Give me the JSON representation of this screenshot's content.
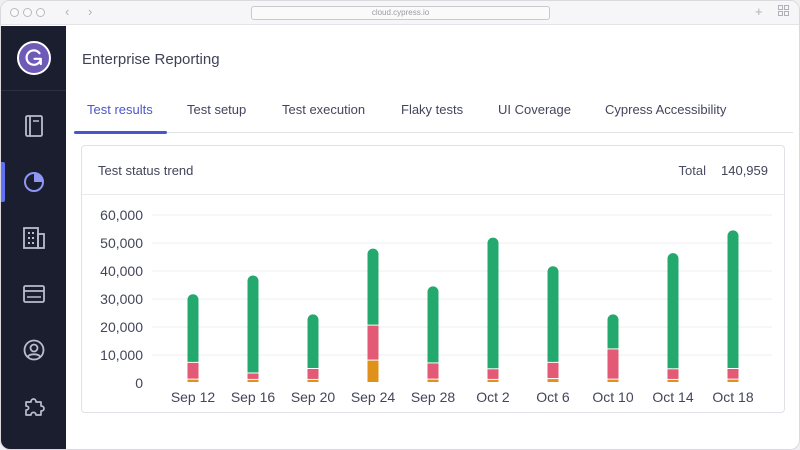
{
  "browser": {
    "url": "cloud.cypress.io"
  },
  "page": {
    "title": "Enterprise Reporting"
  },
  "tabs": [
    {
      "label": "Test results",
      "active": true
    },
    {
      "label": "Test setup",
      "active": false
    },
    {
      "label": "Test execution",
      "active": false
    },
    {
      "label": "Flaky tests",
      "active": false
    },
    {
      "label": "UI Coverage",
      "active": false
    },
    {
      "label": "Cypress Accessibility",
      "active": false
    }
  ],
  "sidebar": {
    "items": [
      {
        "icon": "book-icon",
        "active": false
      },
      {
        "icon": "pie-chart-icon",
        "active": true
      },
      {
        "icon": "building-icon",
        "active": false
      },
      {
        "icon": "card-icon",
        "active": false
      },
      {
        "icon": "user-circle-icon",
        "active": false
      },
      {
        "icon": "puzzle-icon",
        "active": false
      }
    ]
  },
  "card": {
    "title": "Test status trend",
    "total_label": "Total",
    "total_value": "140,959"
  },
  "colors": {
    "passed": "#23a86d",
    "failed": "#e35a76",
    "other": "#e0911a",
    "accent": "#4a55c9"
  },
  "chart_data": {
    "type": "bar",
    "stacked": true,
    "categories": [
      "Sep 12",
      "Sep 16",
      "Sep 20",
      "Sep 24",
      "Sep 28",
      "Oct 2",
      "Oct 6",
      "Oct 10",
      "Oct 14",
      "Oct 18"
    ],
    "yticks": [
      "0",
      "10,000",
      "20,000",
      "30,000",
      "40,000",
      "50,000",
      "60,000"
    ],
    "ylim": [
      0,
      60000
    ],
    "grid": true,
    "series": [
      {
        "key": "other",
        "values": [
          1200,
          1100,
          1100,
          8000,
          1200,
          1100,
          1400,
          1200,
          1100,
          1200
        ]
      },
      {
        "key": "failed",
        "values": [
          6000,
          2300,
          3900,
          12500,
          5800,
          3800,
          5800,
          10800,
          3800,
          3800
        ]
      },
      {
        "key": "passed",
        "values": [
          24500,
          35000,
          19500,
          27500,
          27500,
          47000,
          34500,
          12500,
          41500,
          49500
        ]
      }
    ]
  }
}
